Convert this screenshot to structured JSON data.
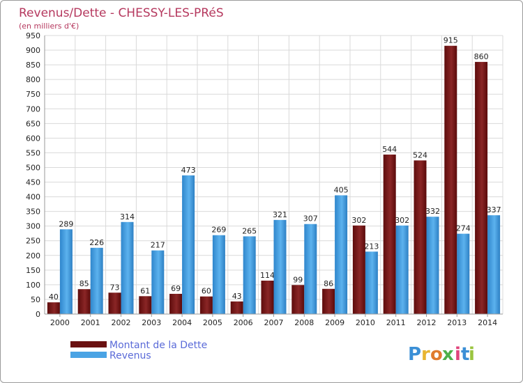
{
  "chart_data": {
    "type": "bar",
    "title": "Revenus/Dette - CHESSY-LES-PRéS",
    "subtitle": "(en milliers d'€)",
    "categories": [
      "2000",
      "2001",
      "2002",
      "2003",
      "2004",
      "2005",
      "2006",
      "2007",
      "2008",
      "2009",
      "2010",
      "2011",
      "2012",
      "2013",
      "2014"
    ],
    "series": [
      {
        "name": "Montant de la Dette",
        "color": "#7a1a1a",
        "values": [
          40,
          85,
          73,
          61,
          69,
          60,
          43,
          114,
          99,
          86,
          302,
          544,
          524,
          915,
          860
        ]
      },
      {
        "name": "Revenus",
        "color": "#4aa3e4",
        "values": [
          289,
          226,
          314,
          217,
          473,
          269,
          265,
          321,
          307,
          405,
          213,
          302,
          332,
          274,
          337
        ]
      }
    ],
    "ylim": [
      0,
      950
    ],
    "ytick_step": 50,
    "grid": true,
    "legend_position": "bottom-left"
  },
  "branding": {
    "logo_letters": [
      "P",
      "r",
      "o",
      "x",
      "i",
      "t",
      "i"
    ],
    "logo_colors": [
      "#3b8fd6",
      "#e8b531",
      "#e07b2e",
      "#4db04a",
      "#e0447c",
      "#3b8fd6",
      "#9ac43f"
    ]
  }
}
